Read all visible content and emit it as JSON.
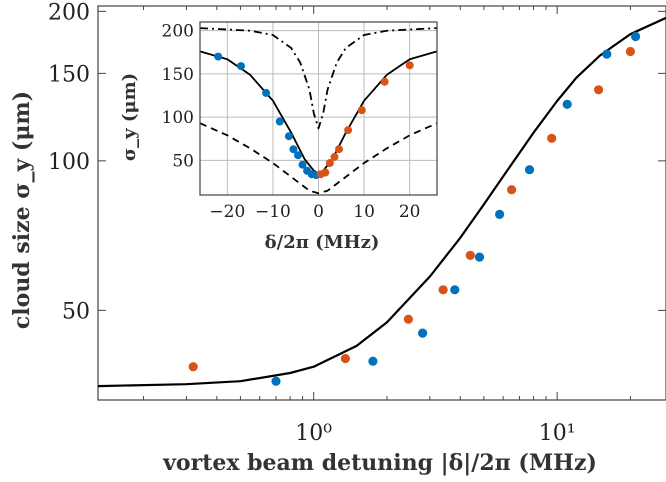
{
  "colors": {
    "blue": "#0072bd",
    "orange": "#d95319",
    "line": "#000000",
    "grid": "#bdbdbd",
    "axis": "#444444"
  },
  "chart_data": [
    {
      "type": "scatter",
      "xscale": "log",
      "yscale": "log",
      "xlim": [
        0.13,
        28
      ],
      "ylim": [
        33,
        205
      ],
      "xlabel": "vortex beam detuning  |δ|/2π (MHz)",
      "ylabel": "cloud size σ_y (μm)",
      "xticks": [
        1,
        10
      ],
      "xtick_labels": [
        "10⁰",
        "10¹"
      ],
      "yticks": [
        50,
        100,
        150,
        200
      ],
      "ytick_labels": [
        "50",
        "100",
        "150",
        "200"
      ],
      "grid": false,
      "series": [
        {
          "color": "blue",
          "x": [
            0.7,
            1.75,
            2.8,
            3.8,
            4.8,
            5.8,
            7.7,
            11,
            16,
            21
          ],
          "y": [
            36,
            39.5,
            45,
            55,
            64,
            78,
            96,
            130,
            164,
            178
          ]
        },
        {
          "color": "orange",
          "x": [
            0.32,
            1.35,
            2.45,
            3.4,
            4.4,
            6.5,
            9.5,
            14.8,
            20
          ],
          "y": [
            38.5,
            40,
            48,
            55,
            64.5,
            87.5,
            111,
            139,
            166
          ]
        },
        {
          "type": "line",
          "color": "line",
          "x": [
            0.13,
            0.3,
            0.5,
            0.8,
            1.0,
            1.5,
            2,
            3,
            4,
            5,
            6,
            8,
            10,
            12,
            15,
            20,
            28
          ],
          "y": [
            35.2,
            35.5,
            36.0,
            37.4,
            38.5,
            42.4,
            47.3,
            58.5,
            70,
            81.7,
            93,
            114,
            132,
            147,
            163,
            180,
            194
          ]
        }
      ]
    },
    {
      "type": "scatter",
      "inset": true,
      "xlim": [
        -26,
        26
      ],
      "ylim": [
        10,
        210
      ],
      "xlabel": "δ/2π (MHz)",
      "ylabel": "σ_y (μm)",
      "xticks": [
        -20,
        -10,
        0,
        10,
        20
      ],
      "xtick_labels": [
        "−20",
        "−10",
        "0",
        "10",
        "20"
      ],
      "yticks": [
        50,
        100,
        150,
        200
      ],
      "ytick_labels": [
        "50",
        "100",
        "150",
        "200"
      ],
      "grid": true,
      "series": [
        {
          "color": "blue",
          "x": [
            -22,
            -17,
            -11.5,
            -8.5,
            -6.5,
            -5.5,
            -4.5,
            -3.5,
            -2.5,
            -1.5,
            -0.5
          ],
          "y": [
            170,
            159,
            128,
            95,
            78,
            63,
            56,
            45,
            38,
            34,
            33
          ]
        },
        {
          "color": "orange",
          "x": [
            0.5,
            1.5,
            2.5,
            3.5,
            4.5,
            6.5,
            9.5,
            14.5,
            20
          ],
          "y": [
            34,
            36,
            47,
            54,
            63,
            85,
            108,
            141,
            160
          ]
        },
        {
          "type": "line",
          "style": "solid",
          "color": "line",
          "x": [
            -26,
            -20,
            -15,
            -10,
            -6,
            -3,
            -1,
            0,
            1,
            3,
            6,
            10,
            15,
            20,
            26
          ],
          "y": [
            176,
            167,
            149,
            119,
            82,
            51,
            38,
            35,
            38,
            51,
            82,
            119,
            149,
            167,
            176
          ]
        },
        {
          "type": "line",
          "style": "dashdot",
          "color": "line",
          "x": [
            -26,
            -15,
            -10,
            -6,
            -4,
            -2,
            -1,
            0,
            1,
            2,
            4,
            6,
            10,
            15,
            26
          ],
          "y": [
            203,
            200,
            195,
            180,
            163,
            132,
            104,
            87,
            104,
            132,
            163,
            180,
            195,
            200,
            203
          ]
        },
        {
          "type": "line",
          "style": "dashed",
          "color": "line",
          "x": [
            -26,
            -20,
            -15,
            -10,
            -5,
            -2,
            0,
            2,
            5,
            10,
            15,
            20,
            26
          ],
          "y": [
            93,
            79,
            64,
            47,
            27,
            15,
            12,
            15,
            27,
            47,
            64,
            79,
            93
          ]
        }
      ]
    }
  ]
}
